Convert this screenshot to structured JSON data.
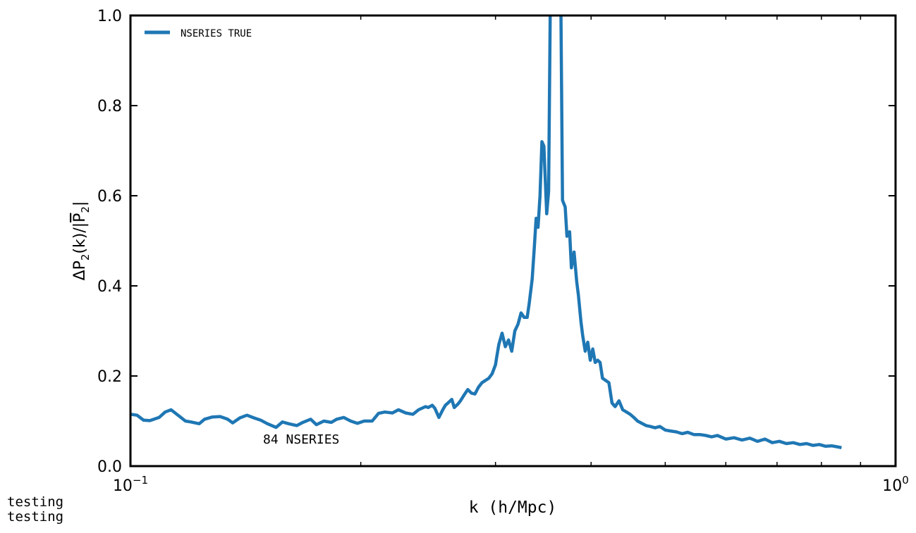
{
  "chart_data": {
    "type": "line",
    "xscale": "log",
    "xlim": [
      0.1,
      1.0
    ],
    "ylim": [
      0.0,
      1.0
    ],
    "xlabel": "k (h/Mpc)",
    "ylabel": "ΔP",
    "ylabel_sub": "2",
    "ylabel_mid": "(k)/|",
    "ylabel_over": "P",
    "ylabel_over_sub": "2",
    "ylabel_end": "|",
    "x_ticks": [
      {
        "value": 0.1,
        "base": "10",
        "exp": "−1"
      },
      {
        "value": 1.0,
        "base": "10",
        "exp": "0"
      }
    ],
    "y_ticks": [
      {
        "value": 0.0,
        "label": "0.0"
      },
      {
        "value": 0.2,
        "label": "0.2"
      },
      {
        "value": 0.4,
        "label": "0.4"
      },
      {
        "value": 0.6,
        "label": "0.6"
      },
      {
        "value": 0.8,
        "label": "0.8"
      },
      {
        "value": 1.0,
        "label": "1.0"
      }
    ],
    "minor_x_ticks": [
      0.2,
      0.3,
      0.4,
      0.5,
      0.6,
      0.7,
      0.8,
      0.9
    ],
    "legend": {
      "position": "top-left",
      "label": "NSERIES TRUE"
    },
    "annotation": "84 NSERIES",
    "series": [
      {
        "name": "NSERIES TRUE",
        "color": "#1f77b4",
        "x": [
          0.1,
          0.102,
          0.104,
          0.106,
          0.109,
          0.111,
          0.113,
          0.116,
          0.118,
          0.12,
          0.123,
          0.125,
          0.128,
          0.131,
          0.134,
          0.136,
          0.139,
          0.142,
          0.145,
          0.148,
          0.151,
          0.155,
          0.158,
          0.161,
          0.165,
          0.168,
          0.172,
          0.175,
          0.179,
          0.183,
          0.186,
          0.19,
          0.194,
          0.198,
          0.202,
          0.207,
          0.211,
          0.215,
          0.22,
          0.224,
          0.229,
          0.234,
          0.238,
          0.243,
          0.245,
          0.248,
          0.25,
          0.253,
          0.256,
          0.258,
          0.26,
          0.263,
          0.265,
          0.268,
          0.27,
          0.273,
          0.276,
          0.279,
          0.282,
          0.285,
          0.288,
          0.291,
          0.294,
          0.297,
          0.3,
          0.301,
          0.303,
          0.306,
          0.309,
          0.312,
          0.315,
          0.318,
          0.321,
          0.324,
          0.327,
          0.33,
          0.332,
          0.335,
          0.337,
          0.339,
          0.341,
          0.343,
          0.345,
          0.347,
          0.35,
          0.352,
          0.354,
          0.365,
          0.367,
          0.37,
          0.372,
          0.375,
          0.377,
          0.38,
          0.383,
          0.385,
          0.388,
          0.39,
          0.393,
          0.396,
          0.399,
          0.402,
          0.405,
          0.408,
          0.411,
          0.414,
          0.418,
          0.422,
          0.426,
          0.43,
          0.435,
          0.44,
          0.445,
          0.45,
          0.455,
          0.46,
          0.466,
          0.472,
          0.478,
          0.485,
          0.492,
          0.5,
          0.508,
          0.517,
          0.526,
          0.535,
          0.545,
          0.555,
          0.565,
          0.575,
          0.585,
          0.6,
          0.615,
          0.63,
          0.645,
          0.66,
          0.675,
          0.69,
          0.705,
          0.72,
          0.735,
          0.75,
          0.765,
          0.78,
          0.795,
          0.81,
          0.825,
          0.838,
          0.85
        ],
        "y": [
          0.115,
          0.113,
          0.102,
          0.101,
          0.108,
          0.12,
          0.125,
          0.11,
          0.1,
          0.098,
          0.094,
          0.104,
          0.109,
          0.11,
          0.104,
          0.096,
          0.107,
          0.113,
          0.107,
          0.102,
          0.094,
          0.086,
          0.098,
          0.094,
          0.09,
          0.097,
          0.104,
          0.092,
          0.1,
          0.097,
          0.104,
          0.108,
          0.1,
          0.095,
          0.1,
          0.1,
          0.117,
          0.12,
          0.118,
          0.125,
          0.118,
          0.115,
          0.125,
          0.132,
          0.13,
          0.135,
          0.128,
          0.108,
          0.125,
          0.135,
          0.14,
          0.148,
          0.13,
          0.138,
          0.145,
          0.158,
          0.17,
          0.162,
          0.16,
          0.175,
          0.185,
          0.19,
          0.195,
          0.205,
          0.225,
          0.24,
          0.27,
          0.295,
          0.265,
          0.28,
          0.255,
          0.3,
          0.315,
          0.34,
          0.33,
          0.33,
          0.36,
          0.415,
          0.48,
          0.55,
          0.53,
          0.6,
          0.72,
          0.71,
          0.56,
          0.61,
          1.08,
          1.08,
          0.59,
          0.575,
          0.51,
          0.52,
          0.44,
          0.475,
          0.41,
          0.38,
          0.32,
          0.29,
          0.255,
          0.275,
          0.235,
          0.26,
          0.23,
          0.235,
          0.23,
          0.195,
          0.19,
          0.185,
          0.14,
          0.132,
          0.145,
          0.125,
          0.12,
          0.115,
          0.108,
          0.1,
          0.095,
          0.09,
          0.088,
          0.085,
          0.088,
          0.08,
          0.078,
          0.076,
          0.072,
          0.075,
          0.07,
          0.07,
          0.068,
          0.065,
          0.068,
          0.06,
          0.063,
          0.058,
          0.062,
          0.055,
          0.06,
          0.052,
          0.055,
          0.05,
          0.052,
          0.048,
          0.05,
          0.046,
          0.048,
          0.044,
          0.045,
          0.043,
          0.041
        ]
      }
    ]
  },
  "footer_notes": [
    "testing",
    "testing"
  ]
}
